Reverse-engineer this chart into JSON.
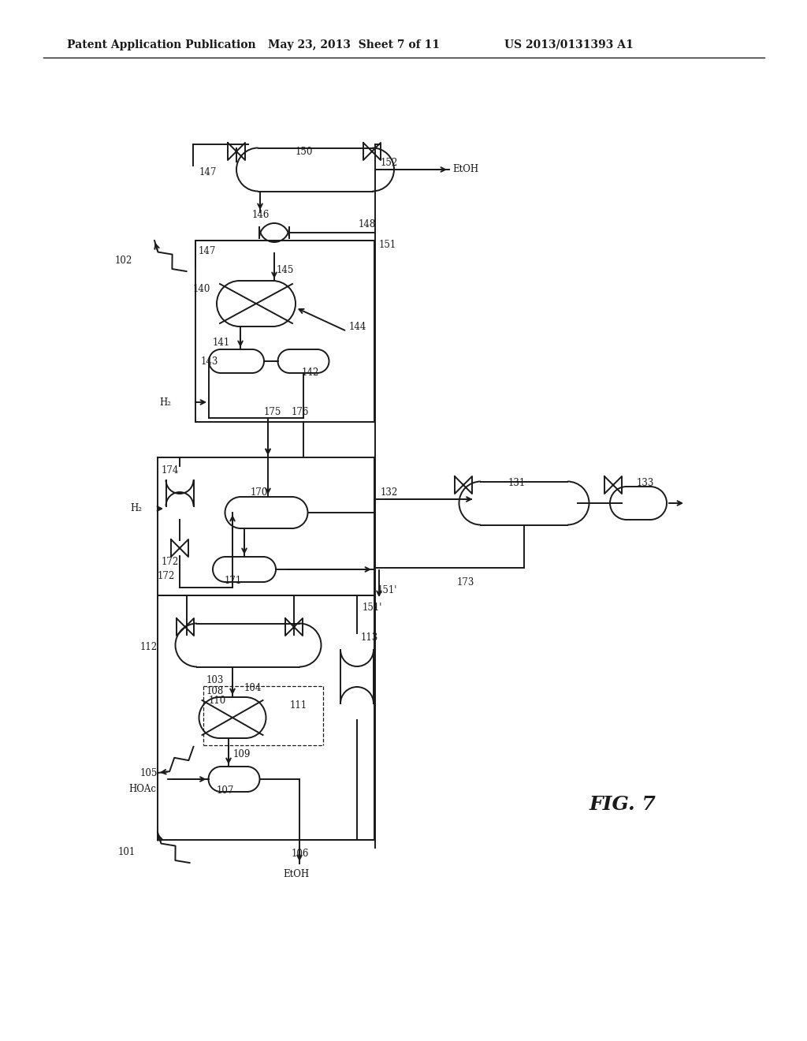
{
  "title_left": "Patent Application Publication",
  "title_mid": "May 23, 2013  Sheet 7 of 11",
  "title_right": "US 2013/0131393 A1",
  "fig_label": "FIG. 7",
  "background": "#ffffff",
  "line_color": "#1a1a1a",
  "text_color": "#1a1a1a",
  "lw": 1.4
}
